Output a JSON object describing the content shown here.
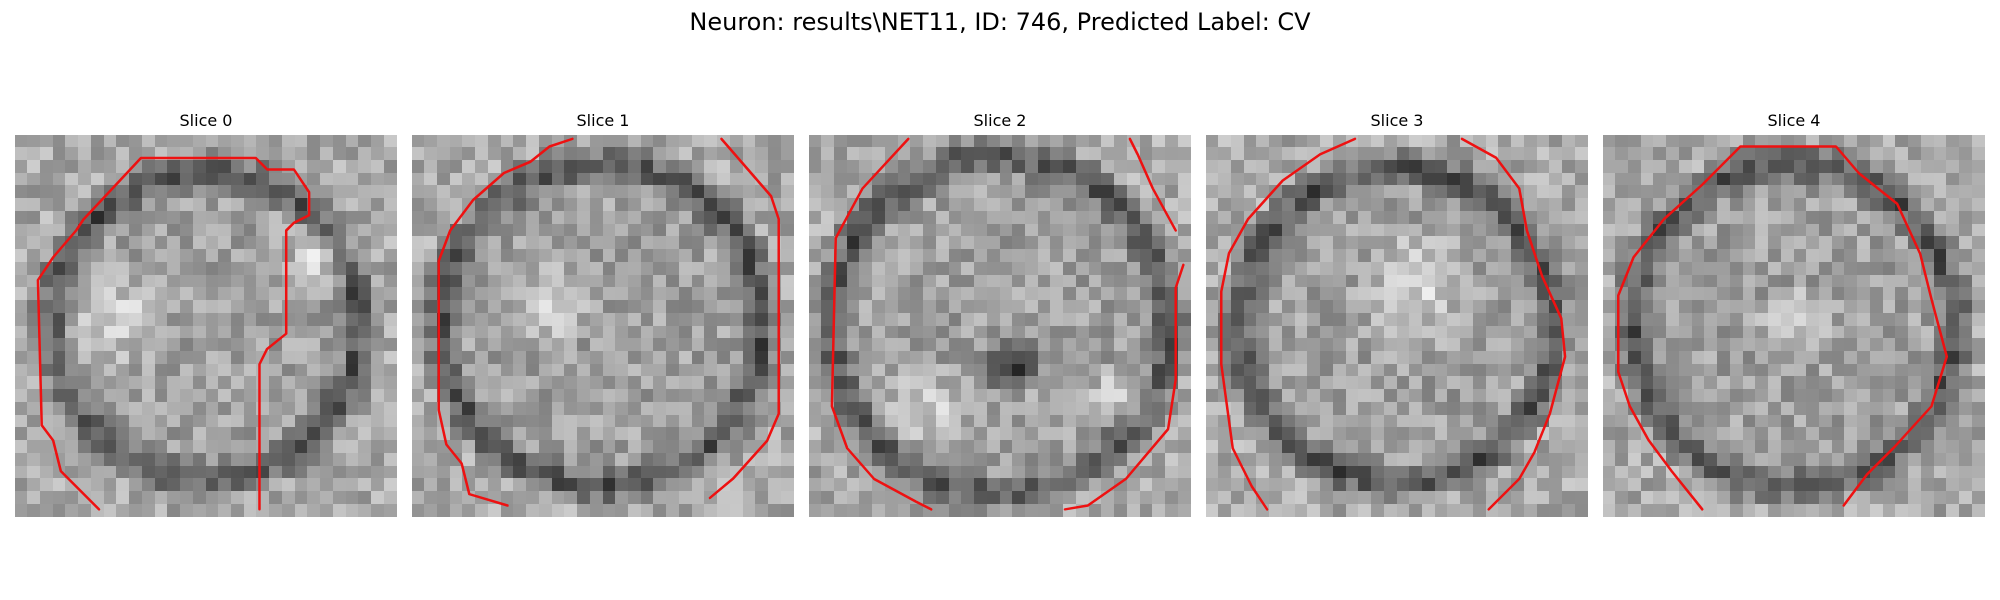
{
  "figure": {
    "title": "Neuron: results\\NET11, ID: 746, Predicted Label: CV",
    "contour_color": "#ee1111"
  },
  "slices": [
    {
      "title": "Slice 0"
    },
    {
      "title": "Slice 1"
    },
    {
      "title": "Slice 2"
    },
    {
      "title": "Slice 3"
    },
    {
      "title": "Slice 4"
    }
  ]
}
